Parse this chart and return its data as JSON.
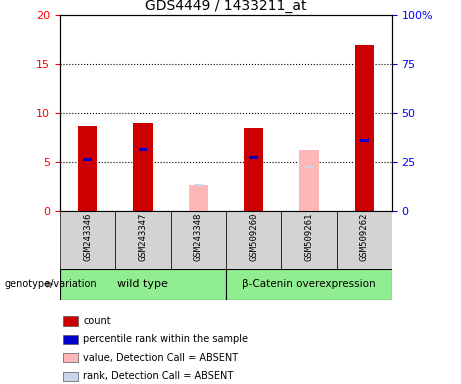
{
  "title": "GDS4449 / 1433211_at",
  "samples": [
    "GSM243346",
    "GSM243347",
    "GSM243348",
    "GSM509260",
    "GSM509261",
    "GSM509262"
  ],
  "count_values": [
    8.7,
    9.0,
    null,
    8.5,
    null,
    17.0
  ],
  "percentile_values_pct": [
    26.5,
    31.5,
    null,
    27.5,
    null,
    36.0
  ],
  "absent_value_values": [
    null,
    null,
    2.7,
    null,
    6.3,
    null
  ],
  "absent_rank_pct": [
    null,
    null,
    13.25,
    null,
    22.5,
    null
  ],
  "ylim_left": [
    0,
    20
  ],
  "ylim_right": [
    0,
    100
  ],
  "yticks_left": [
    0,
    5,
    10,
    15,
    20
  ],
  "yticks_right": [
    0,
    25,
    50,
    75,
    100
  ],
  "ytick_labels_right": [
    "0",
    "25",
    "50",
    "75",
    "100%"
  ],
  "count_color": "#cc0000",
  "percentile_color": "#0000cc",
  "absent_value_color": "#ffb6b6",
  "absent_rank_color": "#c8d8e8",
  "bar_width": 0.35,
  "genotype_label": "genotype/variation",
  "group1_name": "wild type",
  "group2_name": "β-Catenin overexpression",
  "group_color": "#90ee90",
  "sample_box_color": "#d3d3d3",
  "legend_items": [
    {
      "color": "#cc0000",
      "label": "count"
    },
    {
      "color": "#0000cc",
      "label": "percentile rank within the sample"
    },
    {
      "color": "#ffb6b6",
      "label": "value, Detection Call = ABSENT"
    },
    {
      "color": "#c8d8e8",
      "label": "rank, Detection Call = ABSENT"
    }
  ]
}
